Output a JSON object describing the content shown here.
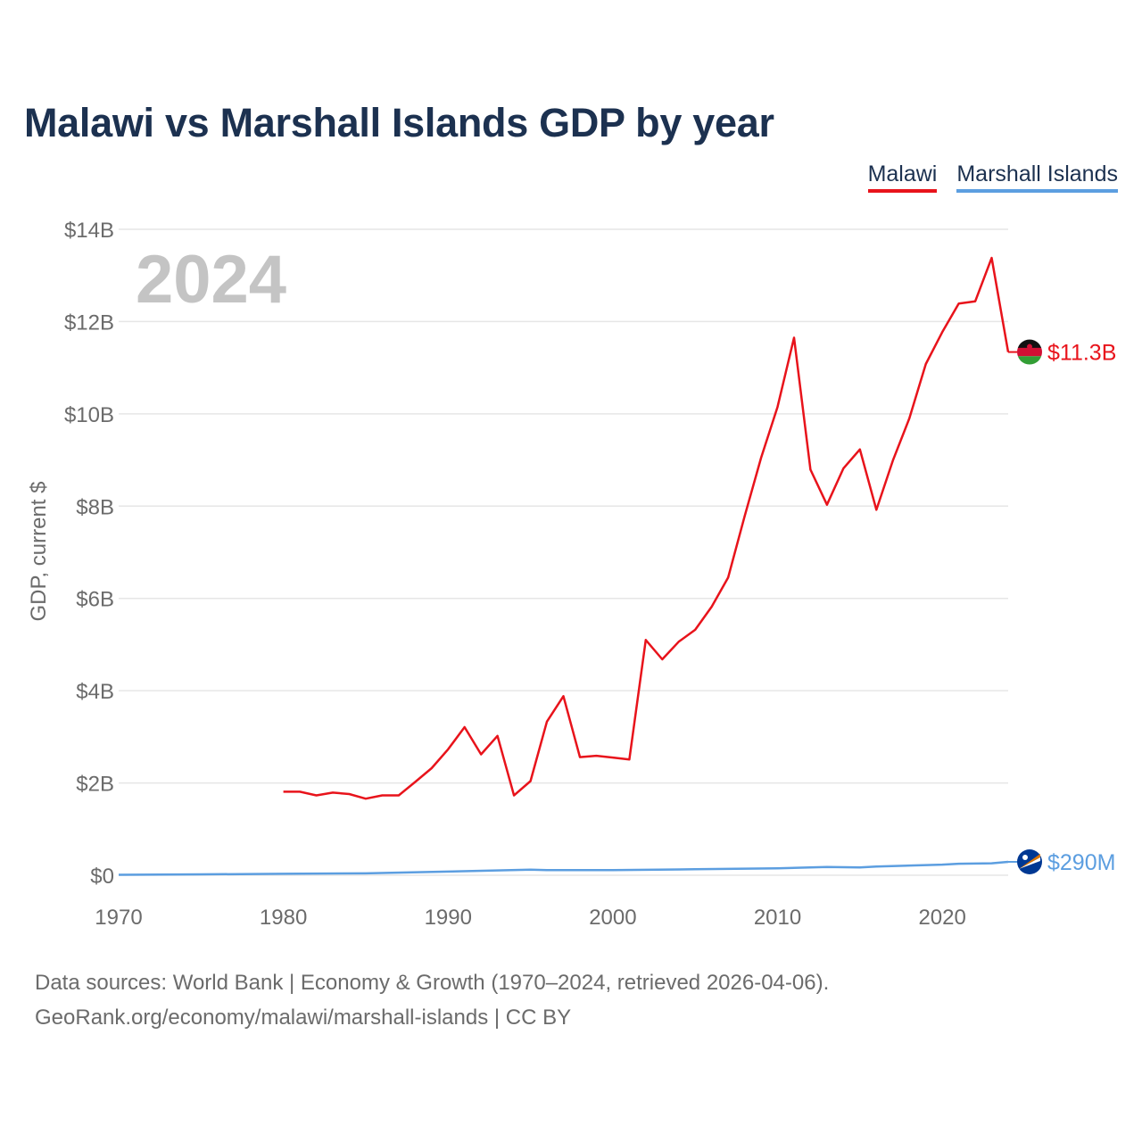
{
  "title": "Malawi vs Marshall Islands GDP by year",
  "legend": {
    "malawi": "Malawi",
    "marshall": "Marshall Islands"
  },
  "year_watermark": "2024",
  "source_line1": "Data sources: World Bank | Economy & Growth (1970–2024, retrieved 2026-04-06).",
  "source_line2": "GeoRank.org/economy/malawi/marshall-islands | CC BY",
  "chart_data": {
    "type": "line",
    "title": "Malawi vs Marshall Islands GDP by year",
    "xlabel": "",
    "ylabel": "GDP, current $",
    "xlim": [
      1970,
      2024
    ],
    "ylim": [
      0,
      14
    ],
    "y_unit": "billions USD",
    "grid": true,
    "legend_position": "top-right",
    "x_ticks": [
      1970,
      1980,
      1990,
      2000,
      2010,
      2020
    ],
    "x_tick_labels": [
      "1970",
      "1980",
      "1990",
      "2000",
      "2010",
      "2020"
    ],
    "y_ticks": [
      0,
      2,
      4,
      6,
      8,
      10,
      12,
      14
    ],
    "y_tick_labels": [
      "$0",
      "$2B",
      "$4B",
      "$6B",
      "$8B",
      "$10B",
      "$12B",
      "$14B"
    ],
    "series": [
      {
        "name": "Malawi",
        "color": "#e8131b",
        "end_label": "$11.3B",
        "x": [
          1980,
          1981,
          1982,
          1983,
          1984,
          1985,
          1986,
          1987,
          1988,
          1989,
          1990,
          1991,
          1992,
          1993,
          1994,
          1995,
          1996,
          1997,
          1998,
          1999,
          2000,
          2001,
          2002,
          2003,
          2004,
          2005,
          2006,
          2007,
          2008,
          2009,
          2010,
          2011,
          2012,
          2013,
          2014,
          2015,
          2016,
          2017,
          2018,
          2019,
          2020,
          2021,
          2022,
          2023,
          2024
        ],
        "values": [
          1.81,
          1.81,
          1.73,
          1.79,
          1.76,
          1.66,
          1.73,
          1.73,
          2.02,
          2.32,
          2.73,
          3.21,
          2.62,
          3.02,
          1.73,
          2.04,
          3.33,
          3.88,
          2.56,
          2.59,
          2.55,
          2.51,
          5.1,
          4.68,
          5.06,
          5.32,
          5.82,
          6.45,
          7.78,
          9.05,
          10.15,
          11.65,
          8.79,
          8.03,
          8.82,
          9.23,
          7.92,
          8.99,
          9.9,
          11.08,
          11.77,
          12.39,
          12.44,
          13.38,
          11.34
        ]
      },
      {
        "name": "Marshall Islands",
        "color": "#5c9ee0",
        "end_label": "$290M",
        "x": [
          1970,
          1975,
          1980,
          1985,
          1990,
          1995,
          1996,
          2000,
          2005,
          2010,
          2013,
          2015,
          2016,
          2020,
          2021,
          2023,
          2024
        ],
        "values": [
          0.01,
          0.02,
          0.03,
          0.04,
          0.08,
          0.12,
          0.11,
          0.11,
          0.13,
          0.15,
          0.18,
          0.17,
          0.19,
          0.23,
          0.25,
          0.26,
          0.29
        ]
      }
    ]
  }
}
